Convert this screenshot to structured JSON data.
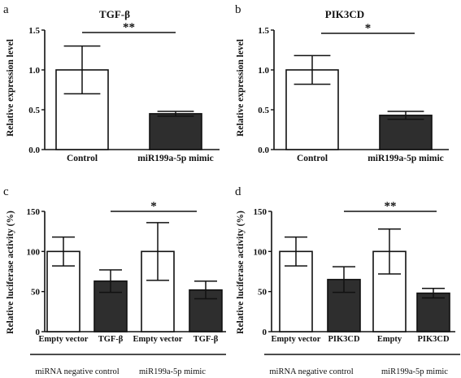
{
  "chart_data": [
    {
      "panel": "a",
      "type": "bar",
      "title": "TGF-β",
      "ylabel": "Relative expression level",
      "categories": [
        "Control",
        "miR199a-5p mimic"
      ],
      "values": [
        1.0,
        0.45
      ],
      "errors": [
        0.3,
        0.03
      ],
      "bar_fills": [
        "#ffffff",
        "#2e2e2e"
      ],
      "ylim": [
        0,
        1.5
      ],
      "yticks": [
        "0.0",
        "0.5",
        "1.0",
        "1.5"
      ],
      "significance": "**"
    },
    {
      "panel": "b",
      "type": "bar",
      "title": "PIK3CD",
      "ylabel": "Relative expression level",
      "categories": [
        "Control",
        "miR199a-5p mimic"
      ],
      "values": [
        1.0,
        0.43
      ],
      "errors": [
        0.18,
        0.05
      ],
      "bar_fills": [
        "#ffffff",
        "#2e2e2e"
      ],
      "ylim": [
        0,
        1.5
      ],
      "yticks": [
        "0.0",
        "0.5",
        "1.0",
        "1.5"
      ],
      "significance": "*"
    },
    {
      "panel": "c",
      "type": "bar",
      "title": "",
      "ylabel": "Relative luciferase activity (%)",
      "categories": [
        "Empty vector",
        "TGF-β",
        "Empty vector",
        "TGF-β"
      ],
      "values": [
        100,
        63,
        100,
        52
      ],
      "errors": [
        18,
        14,
        36,
        11
      ],
      "bar_fills": [
        "#ffffff",
        "#2e2e2e",
        "#ffffff",
        "#2e2e2e"
      ],
      "ylim": [
        0,
        150
      ],
      "yticks": [
        "0",
        "50",
        "100",
        "150"
      ],
      "significance": "*",
      "groups": [
        "miRNA negative control",
        "miR199a-5p mimic"
      ]
    },
    {
      "panel": "d",
      "type": "bar",
      "title": "",
      "ylabel": "Relative luciferase activity (%)",
      "categories": [
        "Empty vector",
        "PIK3CD",
        "Empty",
        "PIK3CD"
      ],
      "values": [
        100,
        65,
        100,
        48
      ],
      "errors": [
        18,
        16,
        28,
        6
      ],
      "bar_fills": [
        "#ffffff",
        "#2e2e2e",
        "#ffffff",
        "#2e2e2e"
      ],
      "ylim": [
        0,
        150
      ],
      "yticks": [
        "0",
        "50",
        "100",
        "150"
      ],
      "significance": "**",
      "groups": [
        "miRNA negative control",
        "miR199a-5p mimic"
      ]
    }
  ]
}
